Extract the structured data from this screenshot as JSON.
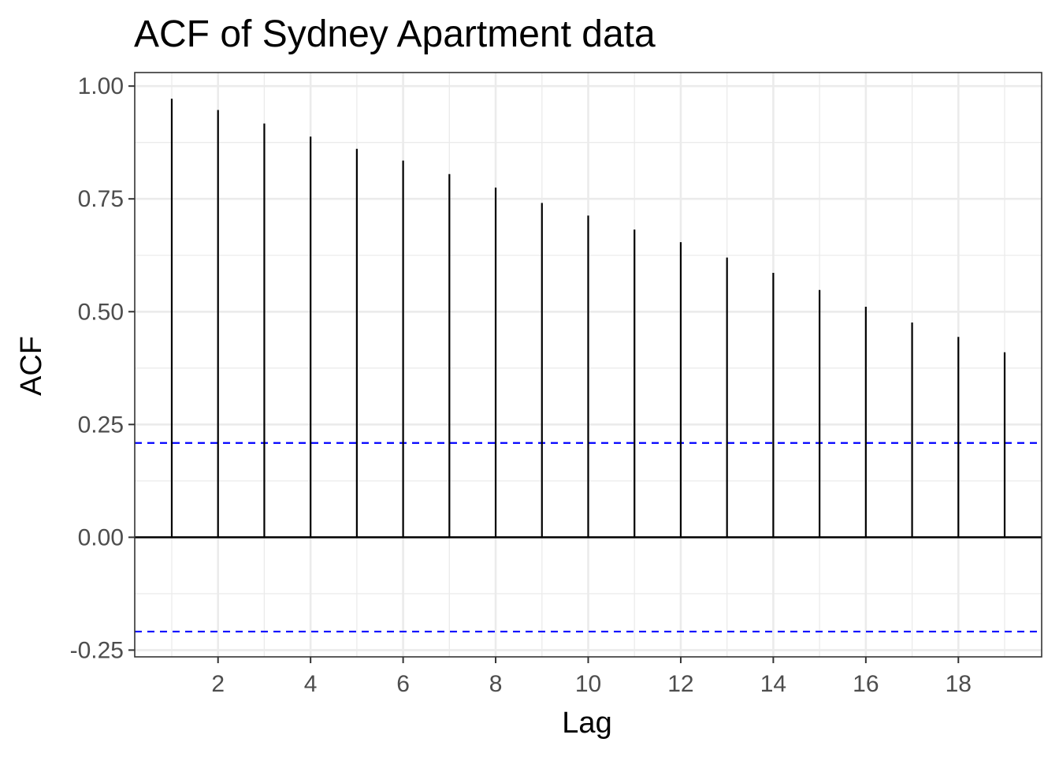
{
  "chart_data": {
    "type": "bar",
    "title": "ACF of Sydney Apartment data",
    "xlabel": "Lag",
    "ylabel": "ACF",
    "x": [
      1,
      2,
      3,
      4,
      5,
      6,
      7,
      8,
      9,
      10,
      11,
      12,
      13,
      14,
      15,
      16,
      17,
      18,
      19
    ],
    "values": [
      0.972,
      0.947,
      0.917,
      0.888,
      0.861,
      0.835,
      0.805,
      0.775,
      0.741,
      0.713,
      0.682,
      0.654,
      0.62,
      0.586,
      0.548,
      0.511,
      0.476,
      0.444,
      0.41
    ],
    "confidence_bounds": [
      0.209,
      -0.209
    ],
    "xlim": [
      0.2,
      19.8
    ],
    "ylim": [
      -0.265,
      1.03
    ],
    "xticks": [
      2,
      4,
      6,
      8,
      10,
      12,
      14,
      16,
      18
    ],
    "xtick_labels": [
      "2",
      "4",
      "6",
      "8",
      "10",
      "12",
      "14",
      "16",
      "18"
    ],
    "yticks": [
      -0.25,
      0,
      0.25,
      0.5,
      0.75,
      1.0
    ],
    "ytick_labels": [
      "-0.25",
      "0.00",
      "0.25",
      "0.50",
      "0.75",
      "1.00"
    ],
    "grid": true,
    "colors": {
      "bars": "#000000",
      "confidence_lines": "#0000ff",
      "grid": "#ebebeb",
      "panel_border": "#333333"
    }
  }
}
